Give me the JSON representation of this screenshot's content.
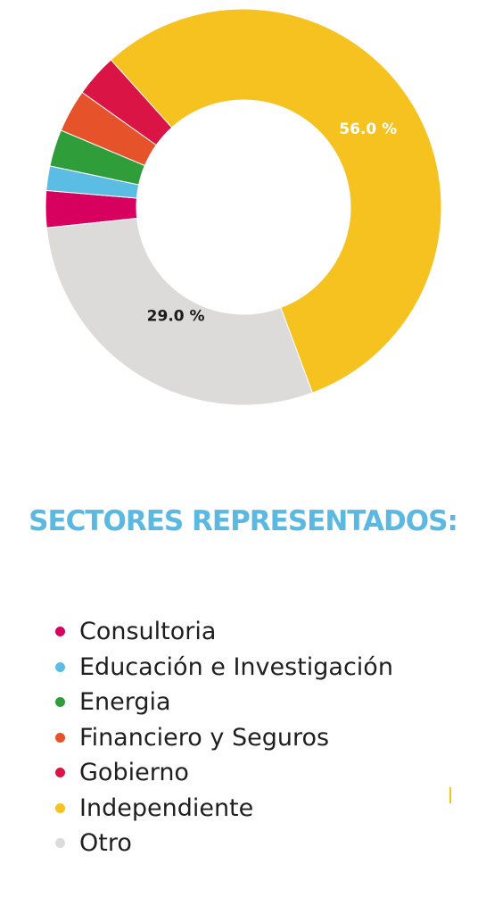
{
  "chart_data": {
    "type": "pie",
    "donut": true,
    "title": "SECTORES REPRESENTADOS:",
    "slices": [
      {
        "label": "Consultoria",
        "value": 3.0,
        "color": "#d7005f"
      },
      {
        "label": "Educación e Investigación",
        "value": 2.0,
        "color": "#5bbde4"
      },
      {
        "label": "Energia",
        "value": 3.0,
        "color": "#2f9e3a"
      },
      {
        "label": "Financiero y Seguros",
        "value": 3.5,
        "color": "#e6532b"
      },
      {
        "label": "Gobierno",
        "value": 3.5,
        "color": "#da1445"
      },
      {
        "label": "Independiente",
        "value": 56.0,
        "color": "#f5c21f"
      },
      {
        "label": "Otro",
        "value": 29.0,
        "color": "#dddbda"
      }
    ],
    "data_labels": [
      {
        "series": "Independiente",
        "text": "56.0 %",
        "color": "#ffffff"
      },
      {
        "series": "Otro",
        "text": "29.0 %",
        "color": "#1a1a1a"
      }
    ],
    "legend_position": "bottom"
  },
  "colors": {
    "title": "#5bb8e0",
    "legend_text": "#1f1f1f"
  }
}
